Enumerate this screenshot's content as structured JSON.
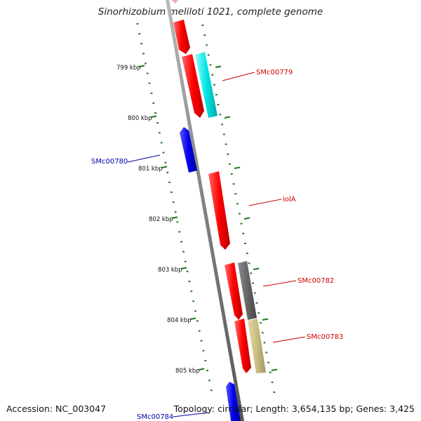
{
  "title": "Sinorhizobium meliloti 1021, complete genome",
  "footer": {
    "accession_label": "Accession:",
    "accession": "NC_003047",
    "topology_label": "Topology:",
    "topology": "circular",
    "length_label": "Length:",
    "length": "3,654,135 bp",
    "genes_label": "Genes:",
    "genes": "3,425"
  },
  "colors": {
    "backbone": "#808080",
    "ticks": "#1a7a1a",
    "forward_strand": "#ff0000",
    "reverse_strand": "#0000ee",
    "cyan_feature": "#00e5e5",
    "gray_feature": "#666666",
    "khaki_feature": "#c8bf80",
    "pink_feature": "#f4a6c0",
    "forward_label": "#cc0000",
    "reverse_label": "#0000aa",
    "kbp_label": "#111111"
  },
  "kbp_labels": [
    "799 kbp",
    "800 kbp",
    "801 kbp",
    "802 kbp",
    "803 kbp",
    "804 kbp",
    "805 kbp"
  ],
  "gene_labels": {
    "SMc00779": "SMc00779",
    "SMc00780": "SMc00780",
    "iolA": "iolA",
    "SMc00782": "SMc00782",
    "SMc00783": "SMc00783",
    "SMc00784": "SMc00784"
  }
}
